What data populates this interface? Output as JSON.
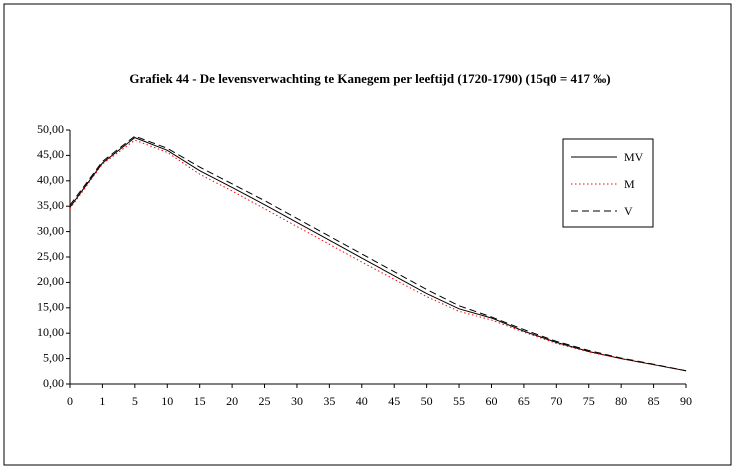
{
  "chart_data": {
    "type": "line",
    "title": "Grafiek 44 - De levensverwachting te Kanegem per leeftijd (1720-1790) (15q0 = 417 ‰)",
    "categories": [
      "0",
      "1",
      "5",
      "10",
      "15",
      "20",
      "25",
      "30",
      "35",
      "40",
      "45",
      "50",
      "55",
      "60",
      "65",
      "70",
      "75",
      "80",
      "85",
      "90"
    ],
    "series": [
      {
        "name": "MV",
        "color": "#000000",
        "dash": "solid",
        "values": [
          34.8,
          43.5,
          48.5,
          46.0,
          42.0,
          38.7,
          35.3,
          31.8,
          28.3,
          24.8,
          21.3,
          17.8,
          14.8,
          13.0,
          10.4,
          8.2,
          6.4,
          5.0,
          3.8,
          2.6
        ]
      },
      {
        "name": "M",
        "color": "#ff0000",
        "dash": "dotted",
        "values": [
          34.5,
          43.3,
          48.0,
          45.6,
          41.3,
          38.0,
          34.5,
          31.0,
          27.5,
          24.0,
          20.6,
          17.2,
          14.3,
          12.6,
          10.2,
          8.0,
          6.3,
          5.0,
          3.8,
          2.6
        ]
      },
      {
        "name": "V",
        "color": "#000000",
        "dash": "dashed",
        "values": [
          35.2,
          43.8,
          48.8,
          46.4,
          42.7,
          39.4,
          36.1,
          32.6,
          29.1,
          25.6,
          22.1,
          18.6,
          15.4,
          13.2,
          10.7,
          8.4,
          6.6,
          5.1,
          3.9,
          2.6
        ]
      }
    ],
    "ylim": [
      0,
      50
    ],
    "yticks": [
      {
        "value": 0,
        "label": "0,00"
      },
      {
        "value": 5,
        "label": "5,00"
      },
      {
        "value": 10,
        "label": "10,00"
      },
      {
        "value": 15,
        "label": "15,00"
      },
      {
        "value": 20,
        "label": "20,00"
      },
      {
        "value": 25,
        "label": "25,00"
      },
      {
        "value": 30,
        "label": "30,00"
      },
      {
        "value": 35,
        "label": "35,00"
      },
      {
        "value": 40,
        "label": "40,00"
      },
      {
        "value": 45,
        "label": "45,00"
      },
      {
        "value": 50,
        "label": "50,00"
      }
    ],
    "grid": false,
    "legend": "right"
  }
}
